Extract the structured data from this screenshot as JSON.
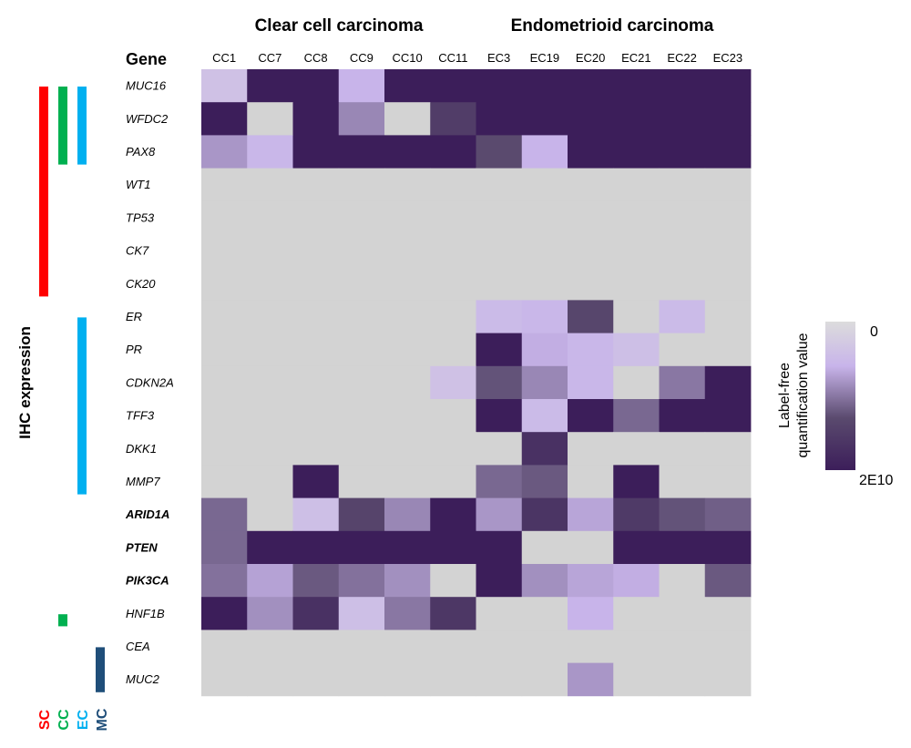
{
  "chart_data": {
    "type": "heatmap",
    "group_titles": [
      "Clear cell carcinoma",
      "Endometrioid carcinoma"
    ],
    "gene_header": "Gene",
    "columns": [
      "CC1",
      "CC7",
      "CC8",
      "CC9",
      "CC10",
      "CC11",
      "EC3",
      "EC19",
      "EC20",
      "EC21",
      "EC22",
      "EC23"
    ],
    "column_groups": [
      0,
      0,
      0,
      0,
      0,
      0,
      1,
      1,
      1,
      1,
      1,
      1
    ],
    "rows": [
      {
        "label": "MUC16",
        "bold": false
      },
      {
        "label": "WFDC2",
        "bold": false
      },
      {
        "label": "PAX8",
        "bold": false
      },
      {
        "label": "WT1",
        "bold": false
      },
      {
        "label": "TP53",
        "bold": false
      },
      {
        "label": "CK7",
        "bold": false
      },
      {
        "label": "CK20",
        "bold": false
      },
      {
        "label": "ER",
        "bold": false
      },
      {
        "label": "PR",
        "bold": false
      },
      {
        "label": "CDKN2A",
        "bold": false
      },
      {
        "label": "TFF3",
        "bold": false
      },
      {
        "label": "DKK1",
        "bold": false
      },
      {
        "label": "MMP7",
        "bold": false
      },
      {
        "label": "ARID1A",
        "bold": true
      },
      {
        "label": "PTEN",
        "bold": true
      },
      {
        "label": "PIK3CA",
        "bold": true
      },
      {
        "label": "HNF1B",
        "bold": false
      },
      {
        "label": "CEA",
        "bold": false
      },
      {
        "label": "MUC2",
        "bold": false
      }
    ],
    "value_scale": {
      "min": 0,
      "max": 20000000000.0,
      "unit": "Label-free quantification value"
    },
    "values": [
      [
        0.2,
        1.0,
        1.0,
        0.3,
        1.0,
        1.0,
        1.0,
        1.0,
        1.0,
        1.0,
        1.0,
        1.0
      ],
      [
        1.0,
        null,
        1.0,
        0.45,
        null,
        0.75,
        1.0,
        1.0,
        1.0,
        1.0,
        1.0,
        1.0
      ],
      [
        0.4,
        0.28,
        1.0,
        1.0,
        1.0,
        1.0,
        0.65,
        0.3,
        1.0,
        1.0,
        1.0,
        1.0
      ],
      [
        null,
        null,
        null,
        null,
        null,
        null,
        null,
        null,
        null,
        null,
        null,
        null
      ],
      [
        null,
        null,
        null,
        null,
        null,
        null,
        null,
        null,
        null,
        null,
        null,
        null
      ],
      [
        null,
        null,
        null,
        null,
        null,
        null,
        null,
        null,
        null,
        null,
        null,
        null
      ],
      [
        null,
        null,
        null,
        null,
        null,
        null,
        null,
        null,
        null,
        null,
        null,
        null
      ],
      [
        null,
        null,
        null,
        null,
        null,
        null,
        0.25,
        0.28,
        0.68,
        null,
        0.25,
        null
      ],
      [
        null,
        null,
        null,
        null,
        null,
        null,
        1.0,
        0.32,
        0.28,
        0.22,
        null,
        null
      ],
      [
        null,
        null,
        null,
        null,
        null,
        0.2,
        0.62,
        0.45,
        0.28,
        null,
        0.5,
        1.0
      ],
      [
        null,
        null,
        null,
        null,
        null,
        null,
        1.0,
        0.25,
        1.0,
        0.55,
        1.0,
        1.0
      ],
      [
        null,
        null,
        null,
        null,
        null,
        null,
        null,
        0.85,
        null,
        null,
        null,
        null
      ],
      [
        null,
        null,
        1.0,
        null,
        null,
        null,
        0.55,
        0.6,
        null,
        1.0,
        null,
        null
      ],
      [
        0.55,
        null,
        0.22,
        0.7,
        0.45,
        1.0,
        0.4,
        0.82,
        0.35,
        0.78,
        0.62,
        0.58
      ],
      [
        0.55,
        1.0,
        1.0,
        1.0,
        1.0,
        1.0,
        1.0,
        null,
        null,
        1.0,
        1.0,
        1.0
      ],
      [
        0.52,
        0.36,
        0.6,
        0.52,
        0.42,
        null,
        1.0,
        0.42,
        0.35,
        0.32,
        null,
        0.6
      ],
      [
        1.0,
        0.42,
        0.85,
        0.22,
        0.5,
        0.8,
        null,
        null,
        0.3,
        null,
        null,
        null
      ],
      [
        null,
        null,
        null,
        null,
        null,
        null,
        null,
        null,
        null,
        null,
        null,
        null
      ],
      [
        null,
        null,
        null,
        null,
        null,
        null,
        null,
        null,
        0.4,
        null,
        null,
        null
      ]
    ],
    "ihc_axis_label": "IHC expression",
    "ihc_markers": [
      {
        "label": "SC",
        "color": "#ff0000",
        "row_spans": [
          [
            0,
            6
          ]
        ]
      },
      {
        "label": "CC",
        "color": "#00b050",
        "row_spans": [
          [
            0,
            2
          ],
          [
            16,
            16
          ]
        ]
      },
      {
        "label": "EC",
        "color": "#00b0f0",
        "row_spans": [
          [
            0,
            2
          ],
          [
            7,
            12
          ]
        ]
      },
      {
        "label": "MC",
        "color": "#1f4e79",
        "row_spans": [
          [
            17,
            18
          ]
        ]
      }
    ],
    "legend": {
      "title_lines": [
        "Label-free",
        "quantification value"
      ],
      "top_label": "0",
      "bottom_label": "2E10",
      "position": "right"
    },
    "missing_color": "#d3d3d3",
    "gradient_colors": [
      "#dcdcdc",
      "#c8b4ea",
      "#5a4a6e",
      "#3c1e5a"
    ]
  }
}
